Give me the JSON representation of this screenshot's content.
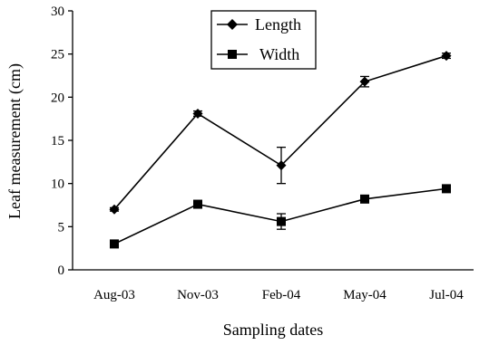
{
  "chart_data": {
    "type": "line",
    "categories": [
      "Aug-03",
      "Nov-03",
      "Feb-04",
      "May-04",
      "Jul-04"
    ],
    "xlabel": "Sampling dates",
    "ylabel": "Leaf measurement (cm)",
    "ylim": [
      0,
      30
    ],
    "yticks": [
      0,
      5,
      10,
      15,
      20,
      25,
      30
    ],
    "grid": false,
    "legend": "top-center",
    "series": [
      {
        "name": "Length",
        "marker": "diamond",
        "values": [
          7.0,
          18.1,
          12.1,
          21.8,
          24.8
        ],
        "errors": [
          0.2,
          0.3,
          2.1,
          0.6,
          0.3
        ]
      },
      {
        "name": "Width",
        "marker": "square",
        "values": [
          3.0,
          7.6,
          5.6,
          8.2,
          9.4
        ],
        "errors": [
          0.2,
          0.3,
          0.9,
          0.3,
          0.3
        ]
      }
    ]
  }
}
